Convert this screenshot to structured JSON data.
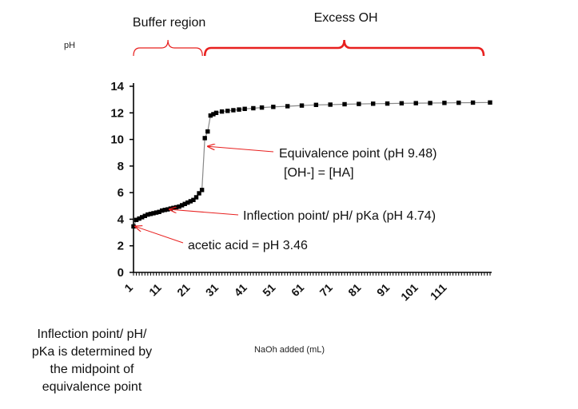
{
  "chart_data": {
    "type": "scatter",
    "title": "",
    "xlabel": "NaOh added (mL)",
    "ylabel": "pH",
    "ylim": [
      0,
      14
    ],
    "yticks": [
      0,
      2,
      4,
      6,
      8,
      10,
      12,
      14
    ],
    "xlim": [
      1,
      126
    ],
    "xtick_labels": [
      "1",
      "11",
      "21",
      "31",
      "41",
      "51",
      "61",
      "71",
      "81",
      "91",
      "101",
      "111"
    ],
    "grid": false,
    "legend": "none",
    "series": [
      {
        "x": [
          1,
          2,
          3,
          4,
          5,
          6,
          7,
          8,
          9,
          10,
          11,
          12,
          13,
          14,
          15,
          16,
          17,
          18,
          19,
          20,
          21,
          22,
          23,
          24,
          25,
          26,
          27,
          28,
          29,
          30,
          32,
          34,
          36,
          38,
          40,
          43,
          46,
          50,
          55,
          60,
          65,
          70,
          75,
          80,
          85,
          90,
          95,
          100,
          105,
          110,
          115,
          120,
          126
        ],
        "y": [
          3.46,
          3.95,
          4.05,
          4.15,
          4.25,
          4.35,
          4.4,
          4.45,
          4.5,
          4.55,
          4.65,
          4.7,
          4.74,
          4.8,
          4.85,
          4.9,
          4.95,
          5.05,
          5.15,
          5.25,
          5.35,
          5.45,
          5.65,
          5.95,
          6.2,
          10.1,
          10.6,
          11.8,
          11.9,
          12.0,
          12.1,
          12.15,
          12.2,
          12.25,
          12.3,
          12.35,
          12.4,
          12.45,
          12.5,
          12.55,
          12.6,
          12.62,
          12.65,
          12.67,
          12.69,
          12.7,
          12.72,
          12.73,
          12.74,
          12.75,
          12.76,
          12.77,
          12.78
        ]
      }
    ],
    "colors": {
      "markers": "#000000",
      "curve": "#888888",
      "axis": "#000000",
      "annotation": "#e8201f"
    },
    "brackets": [
      {
        "label": "Buffer region",
        "from_x": 1,
        "to_x": 26
      },
      {
        "label": "Excess OH",
        "from_x": 26,
        "to_x": 126
      }
    ],
    "annotations": [
      {
        "lines": [
          "Equivalence point (pH 9.48)",
          "[OH-] = [HA]"
        ],
        "target_x": 26.5,
        "target_y": 9.48
      },
      {
        "lines": [
          "Inflection point/ pH/ pKa (pH 4.74)"
        ],
        "target_x": 13,
        "target_y": 4.74
      },
      {
        "lines": [
          "acetic acid = pH 3.46"
        ],
        "target_x": 1,
        "target_y": 3.46
      }
    ]
  },
  "footnote": [
    "Inflection point/ pH/",
    "pKa is determined by",
    "the midpoint of",
    "equivalence point"
  ]
}
